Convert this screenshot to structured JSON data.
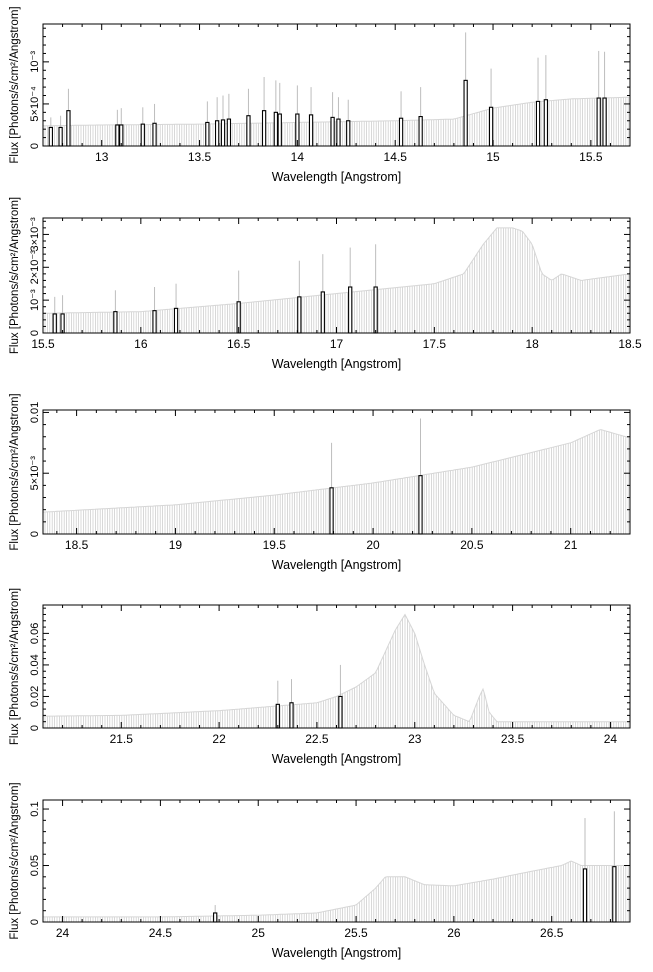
{
  "chart_data": [
    {
      "type": "bar",
      "xlabel": "Wavelength [Angstrom]",
      "ylabel": "Flux [Photons/s/cm²/Angstrom]",
      "xlim": [
        12.7,
        15.7
      ],
      "ylim": [
        0,
        0.00145
      ],
      "xticks": [
        13,
        13.5,
        14,
        14.5,
        15,
        15.5
      ],
      "xtick_labels": [
        "13",
        "13.5",
        "14",
        "14.5",
        "15",
        "15.5"
      ],
      "yticks": [
        0,
        0.0005,
        0.001
      ],
      "ytick_labels": [
        "0",
        "5×10⁻⁴",
        "10⁻³"
      ],
      "background": [
        [
          12.7,
          0.00024
        ],
        [
          13.0,
          0.00025
        ],
        [
          13.5,
          0.00026
        ],
        [
          14.0,
          0.00028
        ],
        [
          14.5,
          0.0003
        ],
        [
          14.8,
          0.00032
        ],
        [
          15.0,
          0.00045
        ],
        [
          15.2,
          0.00052
        ],
        [
          15.4,
          0.00056
        ],
        [
          15.7,
          0.00058
        ]
      ],
      "lines": [
        {
          "x": 12.74,
          "y": 0.00022,
          "err": 0.00034
        },
        {
          "x": 12.79,
          "y": 0.00022,
          "err": 0.00036
        },
        {
          "x": 12.83,
          "y": 0.00042,
          "err": 0.00068
        },
        {
          "x": 13.08,
          "y": 0.00025,
          "err": 0.00043
        },
        {
          "x": 13.1,
          "y": 0.00025,
          "err": 0.00045
        },
        {
          "x": 13.21,
          "y": 0.00026,
          "err": 0.00046
        },
        {
          "x": 13.27,
          "y": 0.00027,
          "err": 0.0005
        },
        {
          "x": 13.54,
          "y": 0.00028,
          "err": 0.00053
        },
        {
          "x": 13.59,
          "y": 0.0003,
          "err": 0.00058
        },
        {
          "x": 13.62,
          "y": 0.00031,
          "err": 0.0006
        },
        {
          "x": 13.65,
          "y": 0.00032,
          "err": 0.00062
        },
        {
          "x": 13.75,
          "y": 0.00036,
          "err": 0.00068
        },
        {
          "x": 13.83,
          "y": 0.00042,
          "err": 0.00082
        },
        {
          "x": 13.89,
          "y": 0.0004,
          "err": 0.00078
        },
        {
          "x": 13.91,
          "y": 0.00038,
          "err": 0.00075
        },
        {
          "x": 14.0,
          "y": 0.00038,
          "err": 0.00072
        },
        {
          "x": 14.07,
          "y": 0.00037,
          "err": 0.0007
        },
        {
          "x": 14.18,
          "y": 0.00034,
          "err": 0.00064
        },
        {
          "x": 14.21,
          "y": 0.00032,
          "err": 0.00058
        },
        {
          "x": 14.26,
          "y": 0.0003,
          "err": 0.00055
        },
        {
          "x": 14.53,
          "y": 0.00033,
          "err": 0.00065
        },
        {
          "x": 14.63,
          "y": 0.00035,
          "err": 0.0007
        },
        {
          "x": 14.86,
          "y": 0.00078,
          "err": 0.00135
        },
        {
          "x": 14.99,
          "y": 0.00046,
          "err": 0.00092
        },
        {
          "x": 15.23,
          "y": 0.00053,
          "err": 0.00105
        },
        {
          "x": 15.27,
          "y": 0.00055,
          "err": 0.00108
        },
        {
          "x": 15.54,
          "y": 0.00057,
          "err": 0.00113
        },
        {
          "x": 15.57,
          "y": 0.00057,
          "err": 0.00112
        }
      ]
    },
    {
      "type": "bar",
      "xlabel": "Wavelength [Angstrom]",
      "ylabel": "Flux [Photons/s/cm²/Angstrom]",
      "xlim": [
        15.5,
        18.5
      ],
      "ylim": [
        0,
        0.0035
      ],
      "xticks": [
        15.5,
        16,
        16.5,
        17,
        17.5,
        18,
        18.5
      ],
      "xtick_labels": [
        "15.5",
        "16",
        "16.5",
        "17",
        "17.5",
        "18",
        "18.5"
      ],
      "yticks": [
        0,
        0.001,
        0.002,
        0.003
      ],
      "ytick_labels": [
        "0",
        "10⁻³",
        "2×10⁻³",
        "3×10⁻³"
      ],
      "background": [
        [
          15.5,
          0.0006
        ],
        [
          16.0,
          0.00065
        ],
        [
          16.5,
          0.0009
        ],
        [
          17.0,
          0.0012
        ],
        [
          17.5,
          0.0015
        ],
        [
          17.65,
          0.0018
        ],
        [
          17.75,
          0.0027
        ],
        [
          17.82,
          0.0032
        ],
        [
          17.9,
          0.0032
        ],
        [
          17.95,
          0.0031
        ],
        [
          18.0,
          0.0027
        ],
        [
          18.05,
          0.0018
        ],
        [
          18.1,
          0.0016
        ],
        [
          18.15,
          0.0018
        ],
        [
          18.25,
          0.0016
        ],
        [
          18.5,
          0.0018
        ]
      ],
      "lines": [
        {
          "x": 15.56,
          "y": 0.00058,
          "err": 0.0011
        },
        {
          "x": 15.6,
          "y": 0.00058,
          "err": 0.00115
        },
        {
          "x": 15.87,
          "y": 0.00065,
          "err": 0.0013
        },
        {
          "x": 16.07,
          "y": 0.00068,
          "err": 0.0014
        },
        {
          "x": 16.18,
          "y": 0.00075,
          "err": 0.0015
        },
        {
          "x": 16.5,
          "y": 0.00095,
          "err": 0.0019
        },
        {
          "x": 16.81,
          "y": 0.0011,
          "err": 0.0022
        },
        {
          "x": 16.93,
          "y": 0.00125,
          "err": 0.0024
        },
        {
          "x": 17.07,
          "y": 0.0014,
          "err": 0.0026
        },
        {
          "x": 17.2,
          "y": 0.0014,
          "err": 0.0027
        }
      ]
    },
    {
      "type": "bar",
      "xlabel": "Wavelength [Angstrom]",
      "ylabel": "Flux [Photons/s/cm²/Angstrom]",
      "xlim": [
        18.33,
        21.3
      ],
      "ylim": [
        0,
        0.0102
      ],
      "xticks": [
        18.5,
        19,
        19.5,
        20,
        20.5,
        21
      ],
      "xtick_labels": [
        "18.5",
        "19",
        "19.5",
        "20",
        "20.5",
        "21"
      ],
      "yticks": [
        0,
        0.005,
        0.01
      ],
      "ytick_labels": [
        "0",
        "5×10⁻³",
        "0.01"
      ],
      "background": [
        [
          18.33,
          0.0018
        ],
        [
          19.0,
          0.0024
        ],
        [
          19.5,
          0.0032
        ],
        [
          20.0,
          0.0042
        ],
        [
          20.5,
          0.0055
        ],
        [
          21.0,
          0.0075
        ],
        [
          21.15,
          0.0086
        ],
        [
          21.3,
          0.0079
        ]
      ],
      "lines": [
        {
          "x": 19.79,
          "y": 0.0038,
          "err": 0.0075
        },
        {
          "x": 20.24,
          "y": 0.0048,
          "err": 0.0095
        }
      ]
    },
    {
      "type": "bar",
      "xlabel": "Wavelength [Angstrom]",
      "ylabel": "Flux [Photons/s/cm²/Angstrom]",
      "xlim": [
        21.1,
        24.1
      ],
      "ylim": [
        0,
        0.078
      ],
      "xticks": [
        21.5,
        22,
        22.5,
        23,
        23.5,
        24
      ],
      "xtick_labels": [
        "21.5",
        "22",
        "22.5",
        "23",
        "23.5",
        "24"
      ],
      "yticks": [
        0,
        0.02,
        0.04,
        0.06
      ],
      "ytick_labels": [
        "0",
        "0.02",
        "0.04",
        "0.06"
      ],
      "background": [
        [
          21.1,
          0.0075
        ],
        [
          21.5,
          0.008
        ],
        [
          22.0,
          0.011
        ],
        [
          22.5,
          0.016
        ],
        [
          22.6,
          0.02
        ],
        [
          22.7,
          0.026
        ],
        [
          22.8,
          0.035
        ],
        [
          22.9,
          0.062
        ],
        [
          22.95,
          0.072
        ],
        [
          23.0,
          0.06
        ],
        [
          23.05,
          0.04
        ],
        [
          23.1,
          0.022
        ],
        [
          23.2,
          0.008
        ],
        [
          23.28,
          0.004
        ],
        [
          23.33,
          0.02
        ],
        [
          23.35,
          0.025
        ],
        [
          23.38,
          0.01
        ],
        [
          23.42,
          0.004
        ],
        [
          24.1,
          0.004
        ]
      ],
      "lines": [
        {
          "x": 22.3,
          "y": 0.015,
          "err": 0.03
        },
        {
          "x": 22.37,
          "y": 0.016,
          "err": 0.031
        },
        {
          "x": 22.62,
          "y": 0.02,
          "err": 0.04
        }
      ]
    },
    {
      "type": "bar",
      "xlabel": "Wavelength [Angstrom]",
      "ylabel": "Flux [Photons/s/cm²/Angstrom]",
      "xlim": [
        23.9,
        26.9
      ],
      "ylim": [
        0,
        0.108
      ],
      "xticks": [
        24,
        24.5,
        25,
        25.5,
        26,
        26.5
      ],
      "xtick_labels": [
        "24",
        "24.5",
        "25",
        "25.5",
        "26",
        "26.5"
      ],
      "yticks": [
        0,
        0.05,
        0.1
      ],
      "ytick_labels": [
        "0",
        "0.05",
        "0.1"
      ],
      "background": [
        [
          23.9,
          0.0045
        ],
        [
          24.5,
          0.0045
        ],
        [
          25.0,
          0.006
        ],
        [
          25.3,
          0.008
        ],
        [
          25.5,
          0.015
        ],
        [
          25.6,
          0.03
        ],
        [
          25.65,
          0.04
        ],
        [
          25.75,
          0.04
        ],
        [
          25.85,
          0.033
        ],
        [
          26.0,
          0.032
        ],
        [
          26.2,
          0.038
        ],
        [
          26.4,
          0.045
        ],
        [
          26.55,
          0.05
        ],
        [
          26.6,
          0.054
        ],
        [
          26.65,
          0.05
        ],
        [
          26.9,
          0.05
        ]
      ],
      "lines": [
        {
          "x": 24.78,
          "y": 0.008,
          "err": 0.015
        },
        {
          "x": 26.67,
          "y": 0.047,
          "err": 0.092
        },
        {
          "x": 26.82,
          "y": 0.049,
          "err": 0.098
        }
      ]
    }
  ]
}
